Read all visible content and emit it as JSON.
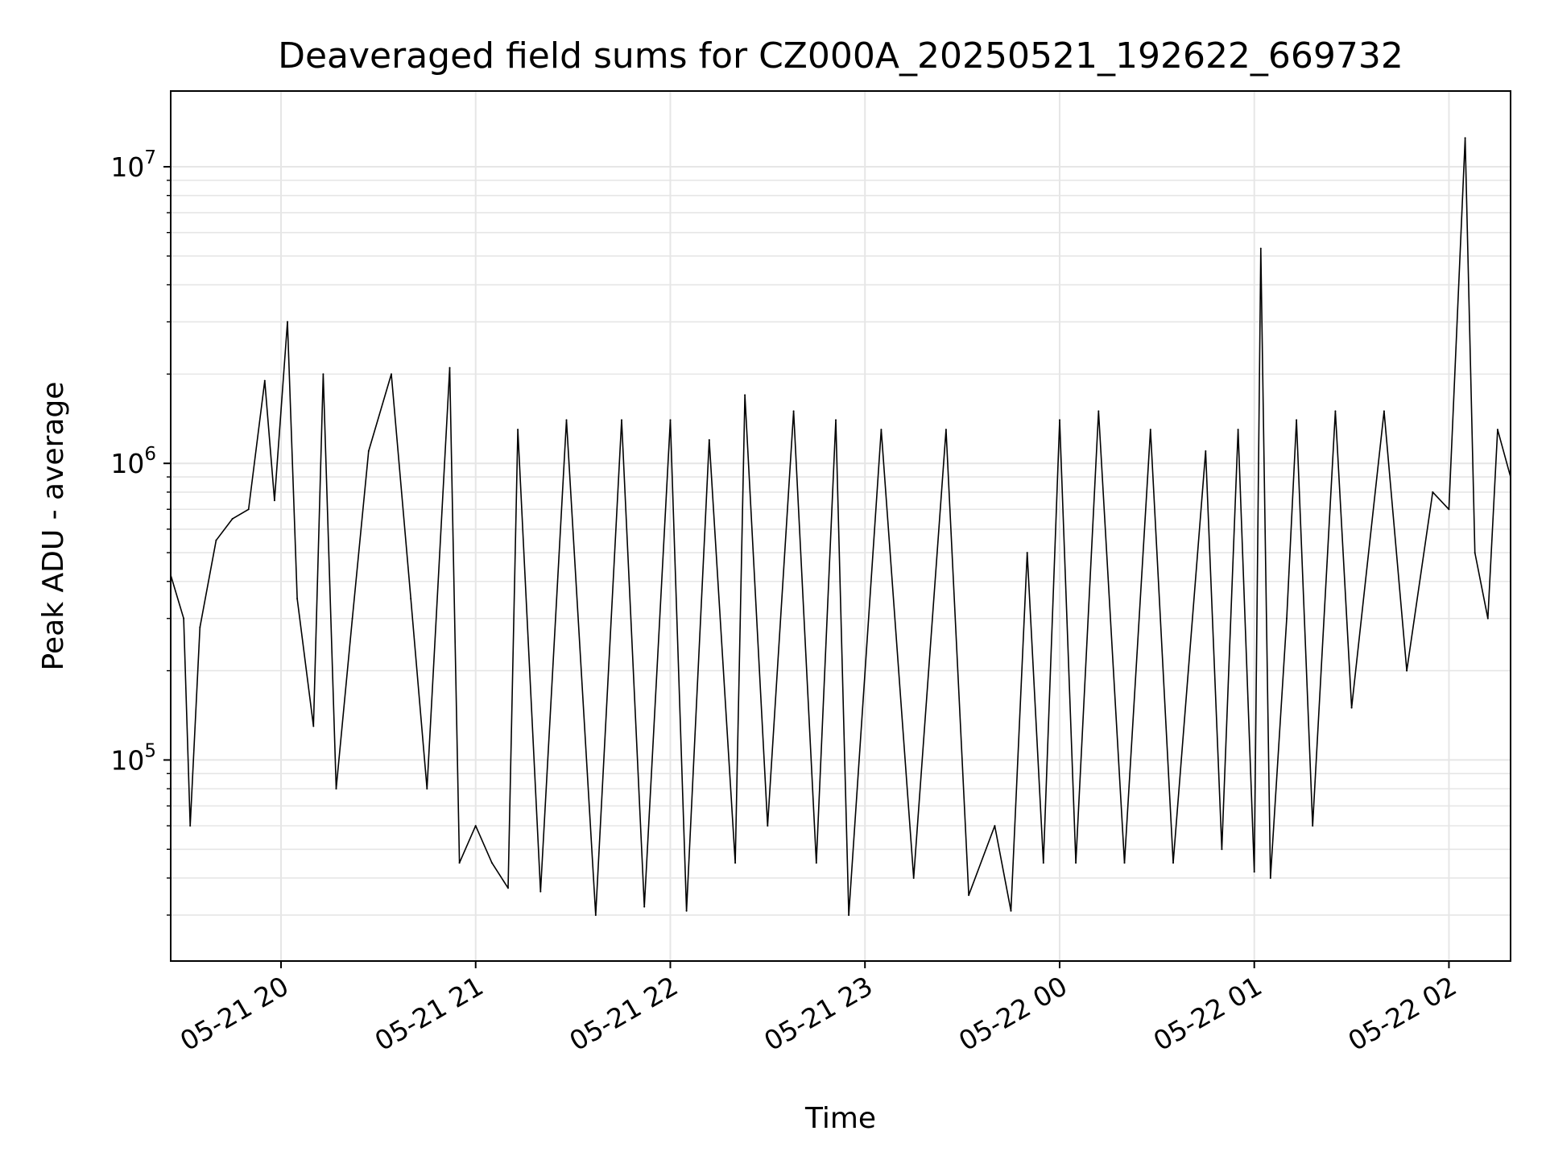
{
  "chart_data": {
    "type": "line",
    "title": "Deaveraged field sums for CZ000A_20250521_192622_669732",
    "xlabel": "Time",
    "ylabel": "Peak ADU - average",
    "yscale": "log",
    "xlim": [
      "2025-05-21 19:26",
      "2025-05-22 02:19"
    ],
    "ylim": [
      21000,
      18000000
    ],
    "grid": true,
    "line_color": "#000000",
    "x_ticks": [
      {
        "time": "2025-05-21 20:00",
        "label": "05-21 20"
      },
      {
        "time": "2025-05-21 21:00",
        "label": "05-21 21"
      },
      {
        "time": "2025-05-21 22:00",
        "label": "05-21 22"
      },
      {
        "time": "2025-05-21 23:00",
        "label": "05-21 23"
      },
      {
        "time": "2025-05-22 00:00",
        "label": "05-22 00"
      },
      {
        "time": "2025-05-22 01:00",
        "label": "05-22 01"
      },
      {
        "time": "2025-05-22 02:00",
        "label": "05-22 02"
      }
    ],
    "y_ticks": [
      {
        "value": 100000,
        "base": "10",
        "exp": "5"
      },
      {
        "value": 1000000,
        "base": "10",
        "exp": "6"
      },
      {
        "value": 10000000,
        "base": "10",
        "exp": "7"
      }
    ],
    "series": [
      {
        "points": [
          [
            "2025-05-21 19:26",
            420000
          ],
          [
            "2025-05-21 19:30",
            300000
          ],
          [
            "2025-05-21 19:32",
            60000
          ],
          [
            "2025-05-21 19:35",
            280000
          ],
          [
            "2025-05-21 19:40",
            550000
          ],
          [
            "2025-05-21 19:45",
            650000
          ],
          [
            "2025-05-21 19:50",
            700000
          ],
          [
            "2025-05-21 19:55",
            1900000
          ],
          [
            "2025-05-21 19:58",
            750000
          ],
          [
            "2025-05-21 20:02",
            3000000
          ],
          [
            "2025-05-21 20:05",
            350000
          ],
          [
            "2025-05-21 20:10",
            130000
          ],
          [
            "2025-05-21 20:13",
            2000000
          ],
          [
            "2025-05-21 20:17",
            80000
          ],
          [
            "2025-05-21 20:22",
            300000
          ],
          [
            "2025-05-21 20:27",
            1100000
          ],
          [
            "2025-05-21 20:34",
            2000000
          ],
          [
            "2025-05-21 20:40",
            350000
          ],
          [
            "2025-05-21 20:45",
            80000
          ],
          [
            "2025-05-21 20:52",
            2100000
          ],
          [
            "2025-05-21 20:55",
            45000
          ],
          [
            "2025-05-21 21:00",
            60000
          ],
          [
            "2025-05-21 21:05",
            45000
          ],
          [
            "2025-05-21 21:10",
            37000
          ],
          [
            "2025-05-21 21:13",
            1300000
          ],
          [
            "2025-05-21 21:20",
            36000
          ],
          [
            "2025-05-21 21:28",
            1400000
          ],
          [
            "2025-05-21 21:37",
            30000
          ],
          [
            "2025-05-21 21:45",
            1400000
          ],
          [
            "2025-05-21 21:52",
            32000
          ],
          [
            "2025-05-21 22:00",
            1400000
          ],
          [
            "2025-05-21 22:05",
            31000
          ],
          [
            "2025-05-21 22:12",
            1200000
          ],
          [
            "2025-05-21 22:20",
            45000
          ],
          [
            "2025-05-21 22:23",
            1700000
          ],
          [
            "2025-05-21 22:30",
            60000
          ],
          [
            "2025-05-21 22:38",
            1500000
          ],
          [
            "2025-05-21 22:45",
            45000
          ],
          [
            "2025-05-21 22:51",
            1400000
          ],
          [
            "2025-05-21 22:55",
            30000
          ],
          [
            "2025-05-21 23:05",
            1300000
          ],
          [
            "2025-05-21 23:15",
            40000
          ],
          [
            "2025-05-21 23:25",
            1300000
          ],
          [
            "2025-05-21 23:32",
            35000
          ],
          [
            "2025-05-21 23:40",
            60000
          ],
          [
            "2025-05-21 23:45",
            31000
          ],
          [
            "2025-05-21 23:50",
            500000
          ],
          [
            "2025-05-21 23:55",
            45000
          ],
          [
            "2025-05-22 00:00",
            1400000
          ],
          [
            "2025-05-22 00:05",
            45000
          ],
          [
            "2025-05-22 00:12",
            1500000
          ],
          [
            "2025-05-22 00:20",
            45000
          ],
          [
            "2025-05-22 00:28",
            1300000
          ],
          [
            "2025-05-22 00:35",
            45000
          ],
          [
            "2025-05-22 00:45",
            1100000
          ],
          [
            "2025-05-22 00:50",
            50000
          ],
          [
            "2025-05-22 00:55",
            1300000
          ],
          [
            "2025-05-22 01:00",
            42000
          ],
          [
            "2025-05-22 01:02",
            5300000
          ],
          [
            "2025-05-22 01:05",
            40000
          ],
          [
            "2025-05-22 01:10",
            300000
          ],
          [
            "2025-05-22 01:13",
            1400000
          ],
          [
            "2025-05-22 01:18",
            60000
          ],
          [
            "2025-05-22 01:25",
            1500000
          ],
          [
            "2025-05-22 01:30",
            150000
          ],
          [
            "2025-05-22 01:40",
            1500000
          ],
          [
            "2025-05-22 01:47",
            200000
          ],
          [
            "2025-05-22 01:55",
            800000
          ],
          [
            "2025-05-22 02:00",
            700000
          ],
          [
            "2025-05-22 02:05",
            12500000
          ],
          [
            "2025-05-22 02:08",
            500000
          ],
          [
            "2025-05-22 02:12",
            300000
          ],
          [
            "2025-05-22 02:15",
            1300000
          ],
          [
            "2025-05-22 02:19",
            900000
          ]
        ]
      }
    ]
  }
}
